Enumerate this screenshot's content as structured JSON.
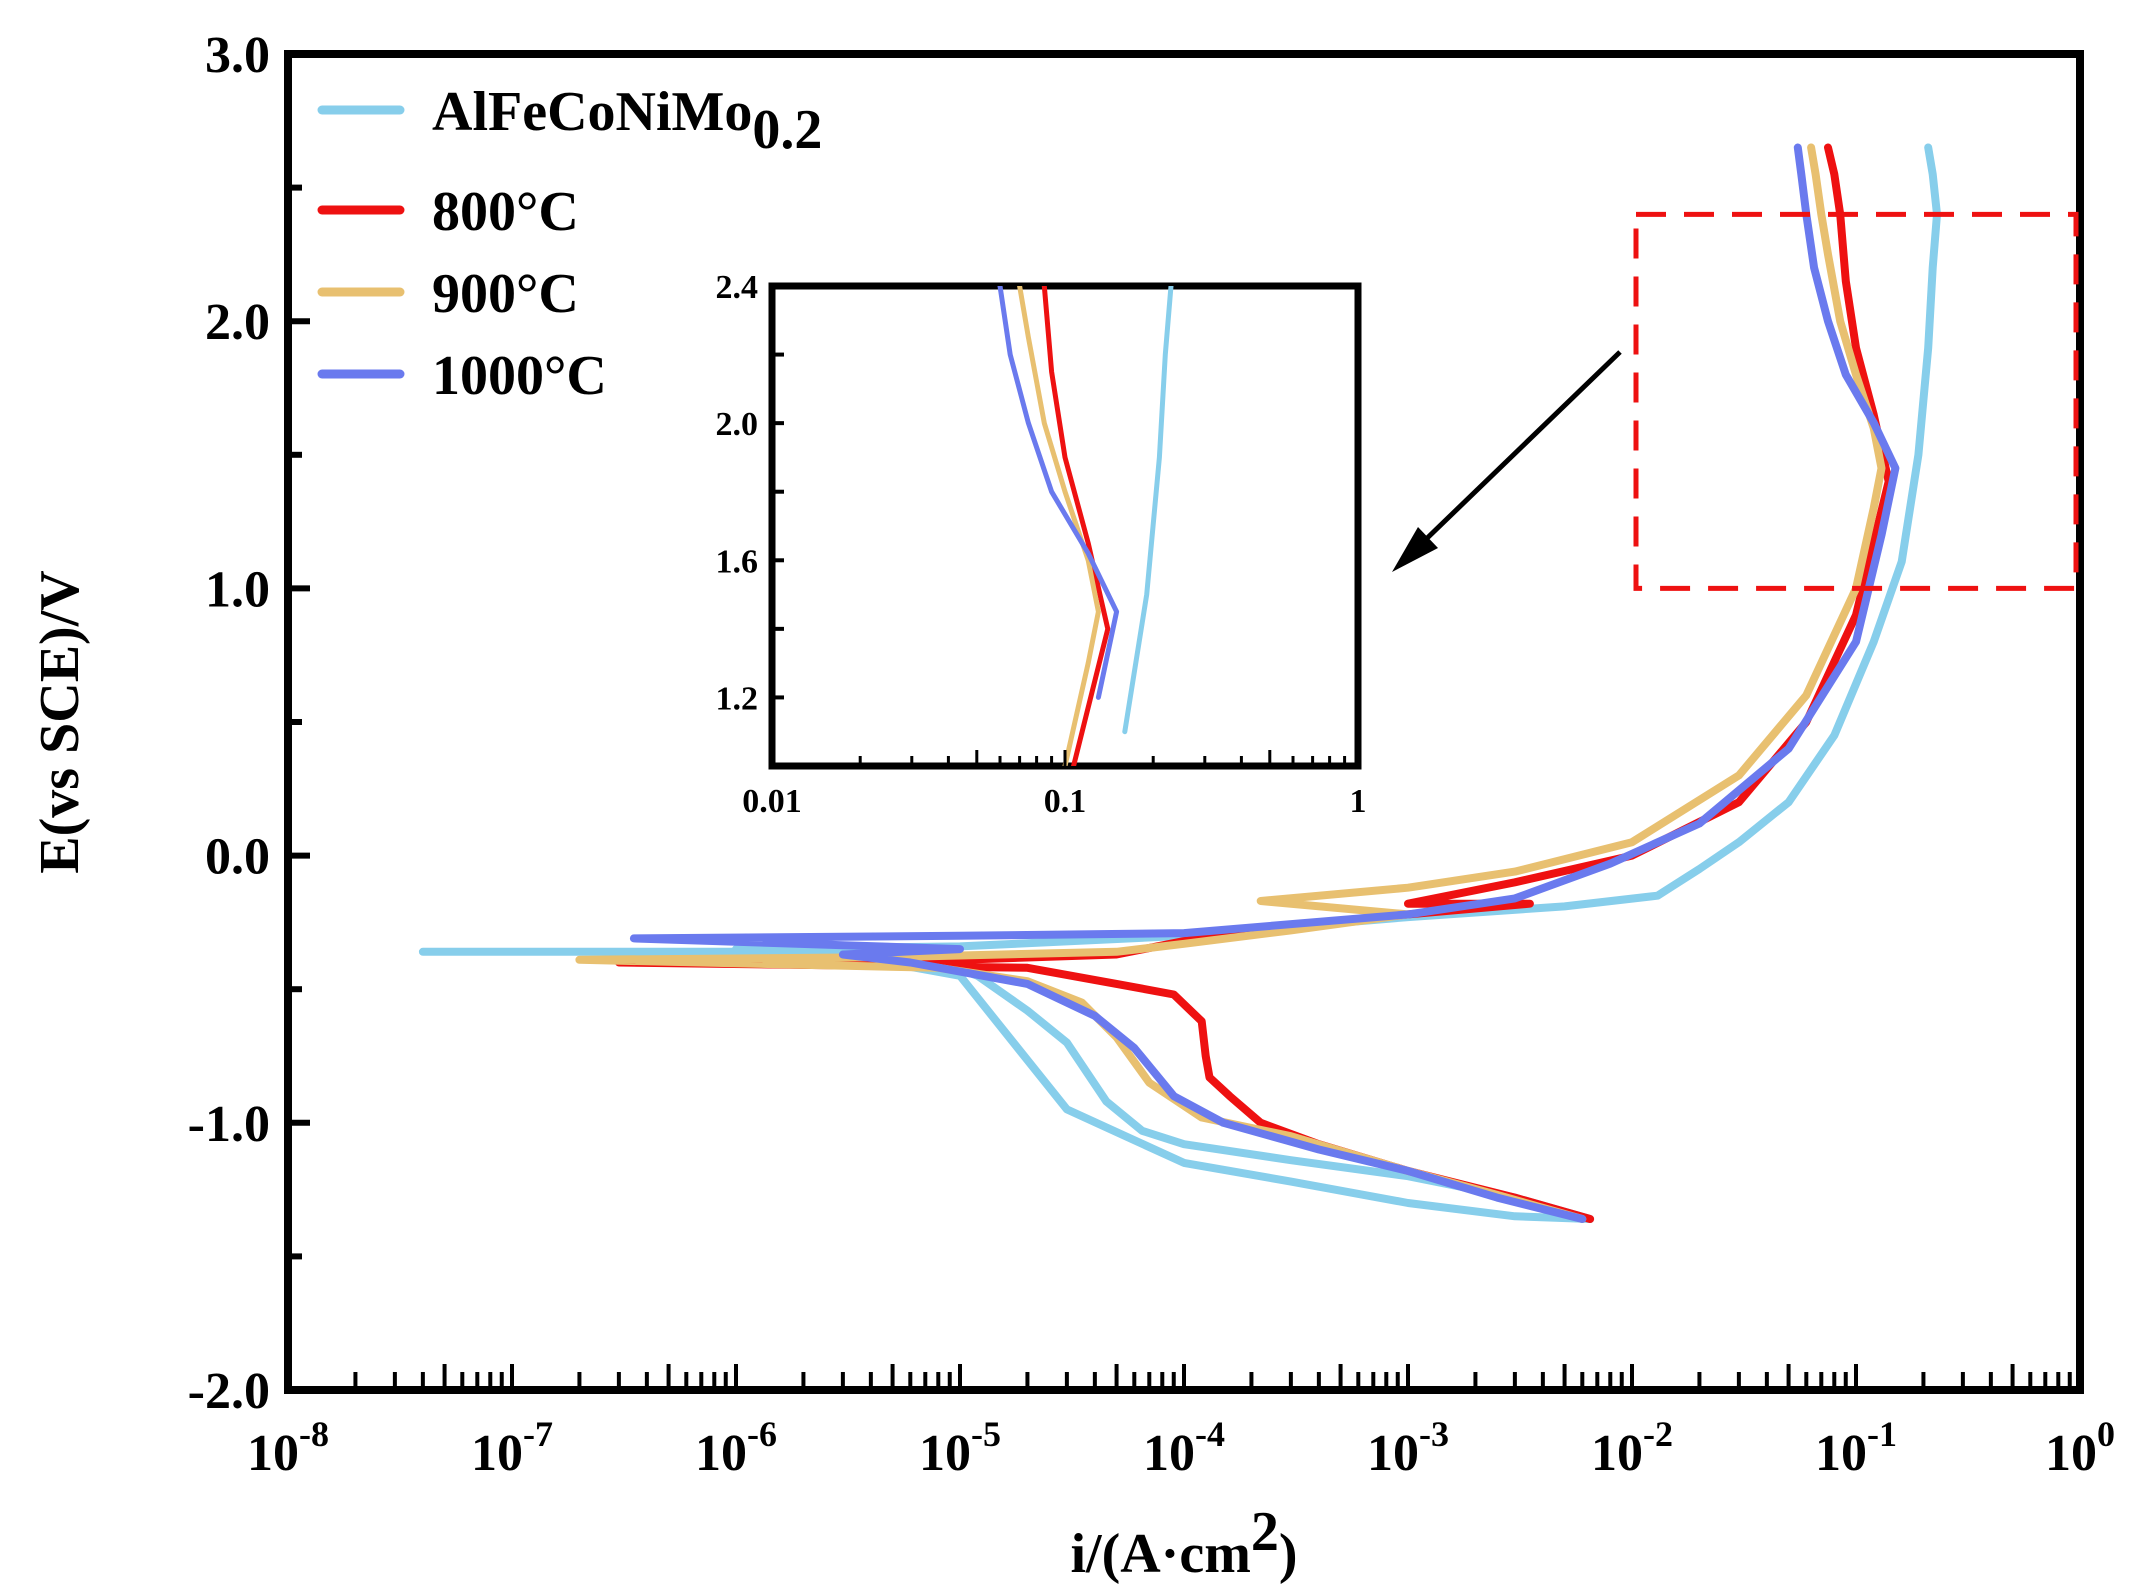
{
  "chart_data": {
    "type": "line",
    "title": "",
    "xlabel": "i/(A·cm",
    "xlabel_sup": "2",
    "xlabel_close": ")",
    "ylabel": "E(vs SCE)/V",
    "xscale": "log",
    "xlim": [
      1e-08,
      1
    ],
    "ylim": [
      -2.0,
      3.0
    ],
    "y_ticks": [
      "3.0",
      "2.0",
      "1.0",
      "0.0",
      "-1.0",
      "-2.0"
    ],
    "x_ticks": [
      {
        "base": "10",
        "exp": "-8"
      },
      {
        "base": "10",
        "exp": "-7"
      },
      {
        "base": "10",
        "exp": "-6"
      },
      {
        "base": "10",
        "exp": "-5"
      },
      {
        "base": "10",
        "exp": "-4"
      },
      {
        "base": "10",
        "exp": "-3"
      },
      {
        "base": "10",
        "exp": "-2"
      },
      {
        "base": "10",
        "exp": "-1"
      },
      {
        "base": "10",
        "exp": "0"
      }
    ],
    "legend": {
      "position": "top-left",
      "entries": [
        {
          "label": "AlFeCoNiMo",
          "sub": "0.2",
          "color": "#87CEEB"
        },
        {
          "label": "800°C",
          "sub": "",
          "color": "#EE1111"
        },
        {
          "label": "900°C",
          "sub": "",
          "color": "#E8C070"
        },
        {
          "label": "1000°C",
          "sub": "",
          "color": "#6A7AEE"
        }
      ]
    },
    "zoom_region": {
      "x_range": [
        0.01,
        1
      ],
      "y_range": [
        1.0,
        2.4
      ],
      "color": "#EE1111"
    },
    "inset": {
      "xlim": [
        0.01,
        1
      ],
      "ylim": [
        1.0,
        2.4
      ],
      "x_ticks": [
        "0.01",
        "0.1",
        "1"
      ],
      "y_ticks": [
        "2.4",
        "2.0",
        "1.6",
        "1.2"
      ]
    },
    "series": [
      {
        "name": "AlFeCoNiMo0.2",
        "color": "#87CEEB",
        "points": [
          [
            4e-08,
            -0.36
          ],
          [
            2e-06,
            -0.36
          ],
          [
            7e-06,
            -0.38
          ],
          [
            1.2e-05,
            -0.45
          ],
          [
            2e-05,
            -0.58
          ],
          [
            3e-05,
            -0.7
          ],
          [
            4.5e-05,
            -0.92
          ],
          [
            6.5e-05,
            -1.03
          ],
          [
            0.0001,
            -1.08
          ],
          [
            0.0003,
            -1.14
          ],
          [
            0.001,
            -1.2
          ],
          [
            0.003,
            -1.28
          ],
          [
            0.0065,
            -1.36
          ],
          [
            0.003,
            -1.35
          ],
          [
            0.001,
            -1.3
          ],
          [
            0.0003,
            -1.22
          ],
          [
            0.0001,
            -1.15
          ],
          [
            3e-05,
            -0.95
          ],
          [
            1e-05,
            -0.45
          ],
          [
            3e-06,
            -0.37
          ],
          [
            1e-06,
            -0.35
          ],
          [
            1e-05,
            -0.34
          ],
          [
            0.0001,
            -0.3
          ],
          [
            0.001,
            -0.23
          ],
          [
            0.005,
            -0.19
          ],
          [
            0.013,
            -0.15
          ],
          [
            0.02,
            -0.05
          ],
          [
            0.03,
            0.05
          ],
          [
            0.05,
            0.2
          ],
          [
            0.08,
            0.45
          ],
          [
            0.12,
            0.8
          ],
          [
            0.16,
            1.1
          ],
          [
            0.19,
            1.5
          ],
          [
            0.21,
            1.9
          ],
          [
            0.22,
            2.2
          ],
          [
            0.23,
            2.4
          ],
          [
            0.22,
            2.55
          ],
          [
            0.21,
            2.65
          ]
        ]
      },
      {
        "name": "800°C",
        "color": "#EE1111",
        "points": [
          [
            0.0065,
            -1.36
          ],
          [
            0.003,
            -1.28
          ],
          [
            0.001,
            -1.18
          ],
          [
            0.0004,
            -1.08
          ],
          [
            0.00022,
            -1.0
          ],
          [
            0.00016,
            -0.9
          ],
          [
            0.00013,
            -0.83
          ],
          [
            0.000125,
            -0.75
          ],
          [
            0.00012,
            -0.62
          ],
          [
            9e-05,
            -0.52
          ],
          [
            5e-05,
            -0.48
          ],
          [
            2e-05,
            -0.42
          ],
          [
            3e-07,
            -0.4
          ],
          [
            1e-05,
            -0.39
          ],
          [
            5e-05,
            -0.37
          ],
          [
            0.0001,
            -0.32
          ],
          [
            0.0003,
            -0.27
          ],
          [
            0.001,
            -0.22
          ],
          [
            0.0035,
            -0.18
          ],
          [
            0.001,
            -0.18
          ],
          [
            0.003,
            -0.1
          ],
          [
            0.01,
            0.0
          ],
          [
            0.03,
            0.2
          ],
          [
            0.06,
            0.5
          ],
          [
            0.1,
            0.9
          ],
          [
            0.14,
            1.4
          ],
          [
            0.12,
            1.65
          ],
          [
            0.1,
            1.9
          ],
          [
            0.09,
            2.15
          ],
          [
            0.085,
            2.4
          ],
          [
            0.08,
            2.55
          ],
          [
            0.075,
            2.65
          ]
        ]
      },
      {
        "name": "900°C",
        "color": "#E8C070",
        "points": [
          [
            0.006,
            -1.36
          ],
          [
            0.0025,
            -1.27
          ],
          [
            0.001,
            -1.18
          ],
          [
            0.0003,
            -1.05
          ],
          [
            0.00012,
            -0.98
          ],
          [
            7e-05,
            -0.85
          ],
          [
            5e-05,
            -0.68
          ],
          [
            3.5e-05,
            -0.55
          ],
          [
            2e-05,
            -0.47
          ],
          [
            8e-06,
            -0.42
          ],
          [
            2e-07,
            -0.39
          ],
          [
            5e-06,
            -0.38
          ],
          [
            5e-05,
            -0.36
          ],
          [
            0.0001,
            -0.33
          ],
          [
            0.0003,
            -0.28
          ],
          [
            0.001,
            -0.22
          ],
          [
            0.00022,
            -0.17
          ],
          [
            0.001,
            -0.12
          ],
          [
            0.003,
            -0.06
          ],
          [
            0.01,
            0.05
          ],
          [
            0.03,
            0.3
          ],
          [
            0.06,
            0.6
          ],
          [
            0.1,
            1.0
          ],
          [
            0.12,
            1.3
          ],
          [
            0.13,
            1.45
          ],
          [
            0.12,
            1.6
          ],
          [
            0.1,
            1.8
          ],
          [
            0.085,
            2.0
          ],
          [
            0.075,
            2.25
          ],
          [
            0.07,
            2.4
          ],
          [
            0.066,
            2.55
          ],
          [
            0.063,
            2.65
          ]
        ]
      },
      {
        "name": "1000°C",
        "color": "#6A7AEE",
        "points": [
          [
            0.006,
            -1.36
          ],
          [
            0.0025,
            -1.28
          ],
          [
            0.001,
            -1.18
          ],
          [
            0.0004,
            -1.1
          ],
          [
            0.00015,
            -1.0
          ],
          [
            9e-05,
            -0.9
          ],
          [
            6e-05,
            -0.72
          ],
          [
            4e-05,
            -0.6
          ],
          [
            2e-05,
            -0.48
          ],
          [
            6e-06,
            -0.4
          ],
          [
            3e-06,
            -0.37
          ],
          [
            1e-05,
            -0.35
          ],
          [
            3.5e-07,
            -0.31
          ],
          [
            1e-05,
            -0.3
          ],
          [
            0.0001,
            -0.29
          ],
          [
            0.001,
            -0.22
          ],
          [
            0.003,
            -0.16
          ],
          [
            0.008,
            -0.03
          ],
          [
            0.02,
            0.12
          ],
          [
            0.05,
            0.4
          ],
          [
            0.1,
            0.8
          ],
          [
            0.13,
            1.2
          ],
          [
            0.15,
            1.45
          ],
          [
            0.12,
            1.62
          ],
          [
            0.09,
            1.8
          ],
          [
            0.075,
            2.0
          ],
          [
            0.065,
            2.2
          ],
          [
            0.06,
            2.4
          ],
          [
            0.057,
            2.55
          ],
          [
            0.055,
            2.65
          ]
        ]
      }
    ]
  }
}
